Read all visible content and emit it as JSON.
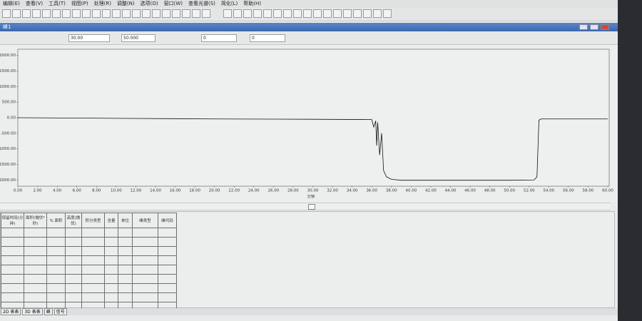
{
  "menu": [
    "编辑(E)",
    "查看(V)",
    "工具(T)",
    "视图(P)",
    "处理(R)",
    "调整(N)",
    "选项(O)",
    "窗口(W)",
    "查看光谱(S)",
    "简化(L)",
    "帮助(H)"
  ],
  "window_title": "峰1",
  "fields": [
    "30.00",
    "50.000",
    "0",
    "0"
  ],
  "chart_data": {
    "type": "line",
    "x_label": "分钟",
    "x": [
      0,
      10,
      20,
      30,
      36,
      36.2,
      36.4,
      36.5,
      36.6,
      36.8,
      37.0,
      37.2,
      37.5,
      38,
      39,
      40,
      45,
      50,
      52.5,
      52.8,
      53.0,
      53.2,
      55,
      60
    ],
    "values": [
      0,
      -20,
      -40,
      -50,
      -60,
      -300,
      -100,
      -900,
      -150,
      -1200,
      -500,
      -1700,
      -1900,
      -1980,
      -2010,
      -2010,
      -2010,
      -2010,
      -2000,
      -1900,
      -80,
      -40,
      -40,
      -40
    ],
    "color": "#111111",
    "grid": false,
    "xlim": [
      0,
      60
    ],
    "xticks": [
      {
        "value": 0,
        "label": "0.00"
      },
      {
        "value": 2,
        "label": "2.00"
      },
      {
        "value": 4,
        "label": "4.00"
      },
      {
        "value": 6,
        "label": "6.00"
      },
      {
        "value": 8,
        "label": "8.00"
      },
      {
        "value": 10,
        "label": "10.00"
      },
      {
        "value": 12,
        "label": "12.00"
      },
      {
        "value": 14,
        "label": "14.00"
      },
      {
        "value": 16,
        "label": "16.00"
      },
      {
        "value": 18,
        "label": "18.00"
      },
      {
        "value": 20,
        "label": "20.00"
      },
      {
        "value": 22,
        "label": "22.00"
      },
      {
        "value": 24,
        "label": "24.00"
      },
      {
        "value": 26,
        "label": "26.00"
      },
      {
        "value": 28,
        "label": "28.00"
      },
      {
        "value": 30,
        "label": "30.00"
      },
      {
        "value": 32,
        "label": "32.00"
      },
      {
        "value": 34,
        "label": "34.00"
      },
      {
        "value": 36,
        "label": "36.00"
      },
      {
        "value": 38,
        "label": "38.00"
      },
      {
        "value": 40,
        "label": "40.00"
      },
      {
        "value": 42,
        "label": "42.00"
      },
      {
        "value": 44,
        "label": "44.00"
      },
      {
        "value": 46,
        "label": "46.00"
      },
      {
        "value": 48,
        "label": "48.00"
      },
      {
        "value": 50,
        "label": "50.00"
      },
      {
        "value": 52,
        "label": "52.00"
      },
      {
        "value": 54,
        "label": "54.00"
      },
      {
        "value": 56,
        "label": "56.00"
      },
      {
        "value": 58,
        "label": "58.00"
      },
      {
        "value": 60,
        "label": "60.00"
      }
    ],
    "ylim": [
      -2200,
      2200
    ],
    "yticks": [
      {
        "value": 2000,
        "label": "2000.00"
      },
      {
        "value": 1500,
        "label": "1500.00"
      },
      {
        "value": 1000,
        "label": "1000.00"
      },
      {
        "value": 500,
        "label": "500.00"
      },
      {
        "value": 0,
        "label": "0.00"
      },
      {
        "value": -500,
        "label": "-500.00"
      },
      {
        "value": -1000,
        "label": "-1000.00"
      },
      {
        "value": -1500,
        "label": "-1500.00"
      },
      {
        "value": -2000,
        "label": "-2000.00"
      }
    ]
  },
  "table": {
    "headers": [
      "保留时间(分钟)",
      "面积(微伏*秒)",
      "% 面积",
      "高度(微伏)",
      "积分类型",
      "含量",
      "单位",
      "峰类型",
      "峰代码"
    ]
  },
  "tabs": [
    "2D 表表",
    "3D 表表",
    "峰",
    "信号"
  ]
}
